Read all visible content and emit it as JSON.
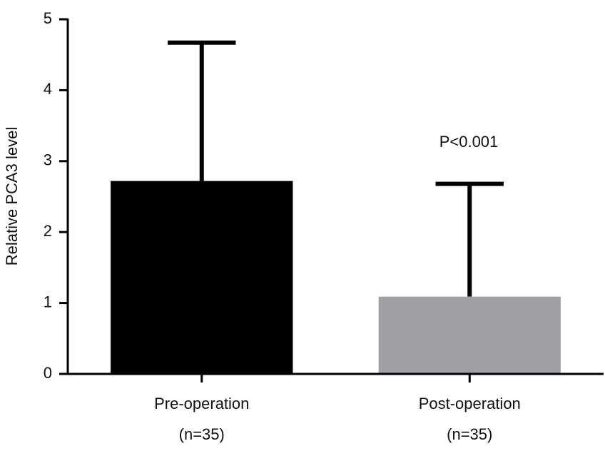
{
  "chart_data": {
    "type": "bar",
    "y_label": "Relative PCA3 level",
    "categories": [
      "Pre-operation",
      "Post-operation"
    ],
    "category_notes": [
      "(n=35)",
      "(n=35)"
    ],
    "values": [
      2.72,
      1.09
    ],
    "errors": [
      1.95,
      1.59
    ],
    "colors": [
      "#000000",
      "#a09fa3"
    ],
    "annotation": "P<0.001",
    "ylim": [
      0,
      5
    ],
    "yticks": [
      0,
      1,
      2,
      3,
      4,
      5
    ],
    "grid": false
  }
}
